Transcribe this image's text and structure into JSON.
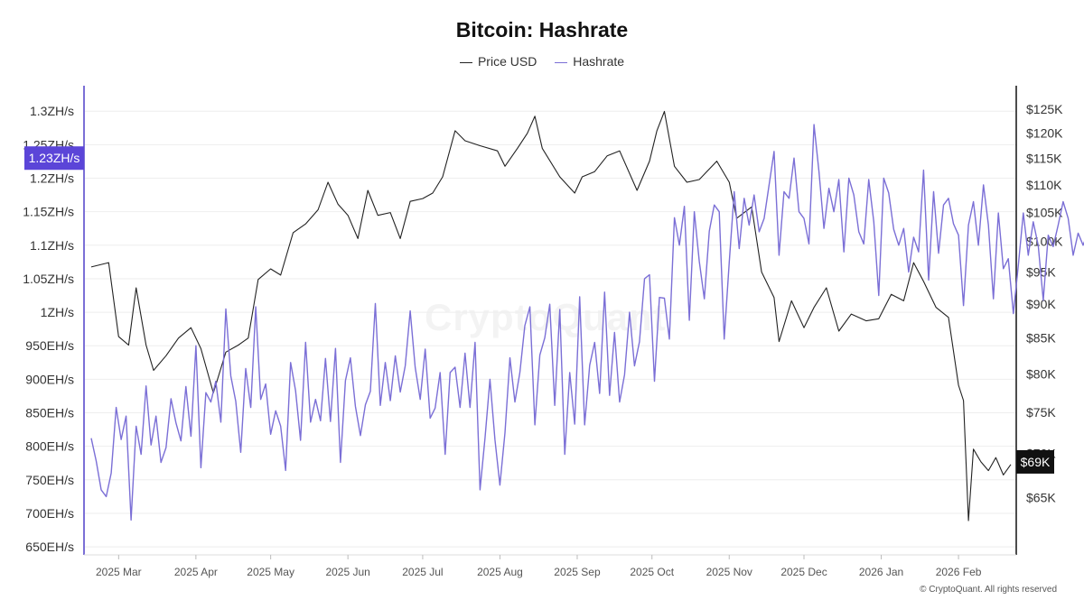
{
  "chart_data": {
    "type": "line",
    "title": "Bitcoin: Hashrate",
    "legend_position": "top-center",
    "grid": true,
    "x_ticks": [
      "2025 Mar",
      "2025 Apr",
      "2025 May",
      "2025 Jun",
      "2025 Jul",
      "2025 Aug",
      "2025 Sep",
      "2025 Oct",
      "2025 Nov",
      "2025 Dec",
      "2026 Jan",
      "2026 Feb"
    ],
    "x_range": [
      "2025-02-18",
      "2026-02-22"
    ],
    "left_axis": {
      "ticks": [
        "650EH/s",
        "700EH/s",
        "750EH/s",
        "800EH/s",
        "850EH/s",
        "900EH/s",
        "950EH/s",
        "1ZH/s",
        "1.05ZH/s",
        "1.1ZH/s",
        "1.15ZH/s",
        "1.2ZH/s",
        "1.25ZH/s",
        "1.3ZH/s"
      ],
      "range_ehs": [
        638,
        1338
      ],
      "current_label": "1.23ZH/s",
      "color": "#7b6fd6"
    },
    "right_axis": {
      "ticks": [
        "$65K",
        "$70K",
        "$75K",
        "$80K",
        "$85K",
        "$90K",
        "$95K",
        "$100K",
        "$105K",
        "$110K",
        "$115K",
        "$120K",
        "$125K"
      ],
      "scale": "log",
      "range_usd": [
        59000,
        130000
      ],
      "current_label": "$69K",
      "color": "#111111"
    },
    "series": [
      {
        "name": "Price USD",
        "axis": "right",
        "color": "#222222",
        "points": [
          [
            "2025-02-18",
            95800
          ],
          [
            "2025-02-25",
            96500
          ],
          [
            "2025-03-01",
            85200
          ],
          [
            "2025-03-05",
            84000
          ],
          [
            "2025-03-08",
            92500
          ],
          [
            "2025-03-12",
            84000
          ],
          [
            "2025-03-15",
            80500
          ],
          [
            "2025-03-20",
            82500
          ],
          [
            "2025-03-25",
            85000
          ],
          [
            "2025-03-30",
            86500
          ],
          [
            "2025-04-03",
            83500
          ],
          [
            "2025-04-08",
            77500
          ],
          [
            "2025-04-13",
            83000
          ],
          [
            "2025-04-18",
            84000
          ],
          [
            "2025-04-22",
            85000
          ],
          [
            "2025-04-26",
            93800
          ],
          [
            "2025-05-01",
            95500
          ],
          [
            "2025-05-05",
            94500
          ],
          [
            "2025-05-10",
            101500
          ],
          [
            "2025-05-15",
            103000
          ],
          [
            "2025-05-20",
            105500
          ],
          [
            "2025-05-24",
            110500
          ],
          [
            "2025-05-28",
            106500
          ],
          [
            "2025-06-01",
            104500
          ],
          [
            "2025-06-05",
            100500
          ],
          [
            "2025-06-09",
            109000
          ],
          [
            "2025-06-13",
            104500
          ],
          [
            "2025-06-18",
            105000
          ],
          [
            "2025-06-22",
            100500
          ],
          [
            "2025-06-26",
            107000
          ],
          [
            "2025-07-01",
            107500
          ],
          [
            "2025-07-05",
            108500
          ],
          [
            "2025-07-09",
            111500
          ],
          [
            "2025-07-14",
            120500
          ],
          [
            "2025-07-18",
            118500
          ],
          [
            "2025-07-24",
            117500
          ],
          [
            "2025-07-31",
            116500
          ],
          [
            "2025-08-03",
            113500
          ],
          [
            "2025-08-08",
            117000
          ],
          [
            "2025-08-12",
            120000
          ],
          [
            "2025-08-15",
            123500
          ],
          [
            "2025-08-18",
            117000
          ],
          [
            "2025-08-25",
            111500
          ],
          [
            "2025-08-31",
            108500
          ],
          [
            "2025-09-03",
            111500
          ],
          [
            "2025-09-08",
            112500
          ],
          [
            "2025-09-13",
            115500
          ],
          [
            "2025-09-18",
            116500
          ],
          [
            "2025-09-25",
            109000
          ],
          [
            "2025-09-30",
            114500
          ],
          [
            "2025-10-03",
            120500
          ],
          [
            "2025-10-06",
            124500
          ],
          [
            "2025-10-10",
            113500
          ],
          [
            "2025-10-15",
            110500
          ],
          [
            "2025-10-20",
            111000
          ],
          [
            "2025-10-27",
            114500
          ],
          [
            "2025-11-01",
            110500
          ],
          [
            "2025-11-04",
            104000
          ],
          [
            "2025-11-10",
            106000
          ],
          [
            "2025-11-14",
            95000
          ],
          [
            "2025-11-19",
            91000
          ],
          [
            "2025-11-21",
            84500
          ],
          [
            "2025-11-26",
            90500
          ],
          [
            "2025-12-01",
            86500
          ],
          [
            "2025-12-05",
            89500
          ],
          [
            "2025-12-10",
            92500
          ],
          [
            "2025-12-15",
            86000
          ],
          [
            "2025-12-20",
            88500
          ],
          [
            "2025-12-26",
            87500
          ],
          [
            "2025-12-31",
            87800
          ],
          [
            "2026-01-05",
            91500
          ],
          [
            "2026-01-10",
            90500
          ],
          [
            "2026-01-14",
            96500
          ],
          [
            "2026-01-18",
            93500
          ],
          [
            "2026-01-23",
            89500
          ],
          [
            "2026-01-28",
            88000
          ],
          [
            "2026-02-01",
            78500
          ],
          [
            "2026-02-03",
            76500
          ],
          [
            "2026-02-05",
            62500
          ],
          [
            "2026-02-07",
            70500
          ],
          [
            "2026-02-10",
            69000
          ],
          [
            "2026-02-13",
            68000
          ],
          [
            "2026-02-16",
            69500
          ],
          [
            "2026-02-19",
            67500
          ],
          [
            "2026-02-22",
            68700
          ]
        ]
      },
      {
        "name": "Hashrate",
        "axis": "left",
        "color": "#7b6fd6",
        "start_date": "2025-02-18",
        "step_days": 2,
        "values_ehs": [
          812,
          778,
          735,
          725,
          760,
          858,
          810,
          845,
          690,
          830,
          788,
          890,
          802,
          845,
          776,
          798,
          871,
          835,
          808,
          889,
          815,
          950,
          768,
          880,
          866,
          897,
          836,
          1005,
          905,
          867,
          791,
          916,
          858,
          1008,
          870,
          893,
          818,
          853,
          830,
          764,
          925,
          883,
          809,
          955,
          836,
          870,
          838,
          931,
          837,
          946,
          776,
          898,
          932,
          860,
          816,
          862,
          882,
          1013,
          861,
          925,
          868,
          935,
          881,
          920,
          1002,
          918,
          870,
          945,
          842,
          857,
          910,
          788,
          910,
          918,
          858,
          939,
          858,
          955,
          735,
          812,
          900,
          810,
          742,
          820,
          932,
          866,
          910,
          980,
          1008,
          832,
          936,
          962,
          1012,
          861,
          1004,
          788,
          910,
          833,
          1023,
          832,
          921,
          955,
          879,
          1030,
          876,
          970,
          866,
          907,
          1000,
          920,
          956,
          1050,
          1056,
          897,
          1022,
          1021,
          960,
          1141,
          1100,
          1158,
          988,
          1150,
          1076,
          1020,
          1121,
          1160,
          1150,
          960,
          1075,
          1180,
          1095,
          1170,
          1130,
          1175,
          1120,
          1140,
          1190,
          1240,
          1085,
          1180,
          1170,
          1230,
          1150,
          1140,
          1102,
          1280,
          1210,
          1125,
          1185,
          1150,
          1198,
          1090,
          1200,
          1175,
          1120,
          1102,
          1198,
          1135,
          1025,
          1200,
          1178,
          1124,
          1100,
          1125,
          1060,
          1112,
          1090,
          1212,
          1048,
          1180,
          1088,
          1160,
          1170,
          1132,
          1115,
          1010,
          1130,
          1165,
          1100,
          1190,
          1130,
          1020,
          1148,
          1065,
          1080,
          998,
          1070,
          1148,
          1085,
          1135,
          1100,
          1018,
          1115,
          1098,
          1130,
          1165,
          1140,
          1085,
          1118,
          1100,
          1120,
          1150,
          1125,
          1090,
          1118,
          1085,
          1100,
          1125,
          1095,
          1070,
          1090,
          850,
          712,
          880,
          955,
          1020,
          1040,
          930,
          986,
          1050,
          1076,
          1218,
          1232
        ]
      }
    ]
  },
  "copyright": "© CryptoQuant. All rights reserved",
  "watermark": "CryptoQuant"
}
